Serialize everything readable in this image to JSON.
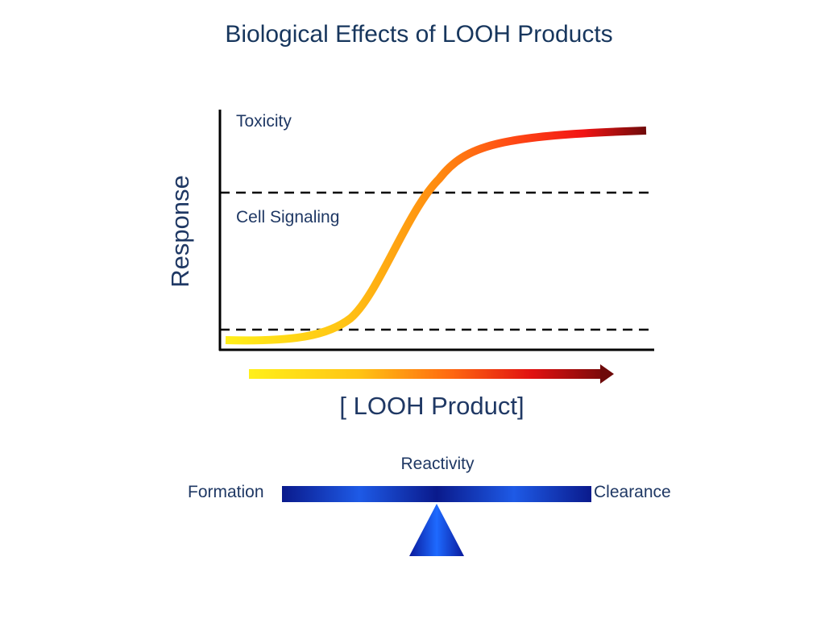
{
  "title": "Biological Effects of LOOH Products",
  "graph": {
    "ylabel": "Response",
    "xlabel": "[ LOOH Product]",
    "bands": {
      "upper": "Toxicity",
      "middle": "Cell Signaling"
    },
    "curve_colors": [
      "#ffef1a",
      "#ffc414",
      "#ff8c10",
      "#ff4a14",
      "#f21414",
      "#6e0a0a"
    ]
  },
  "balance": {
    "top_label": "Reactivity",
    "left_label": "Formation",
    "right_label": "Clearance",
    "beam_colors": [
      "#0a1a8c",
      "#1e5ae6",
      "#0a1a8c"
    ],
    "fulcrum_colors": [
      "#0a1a9c",
      "#1e6aff"
    ]
  }
}
